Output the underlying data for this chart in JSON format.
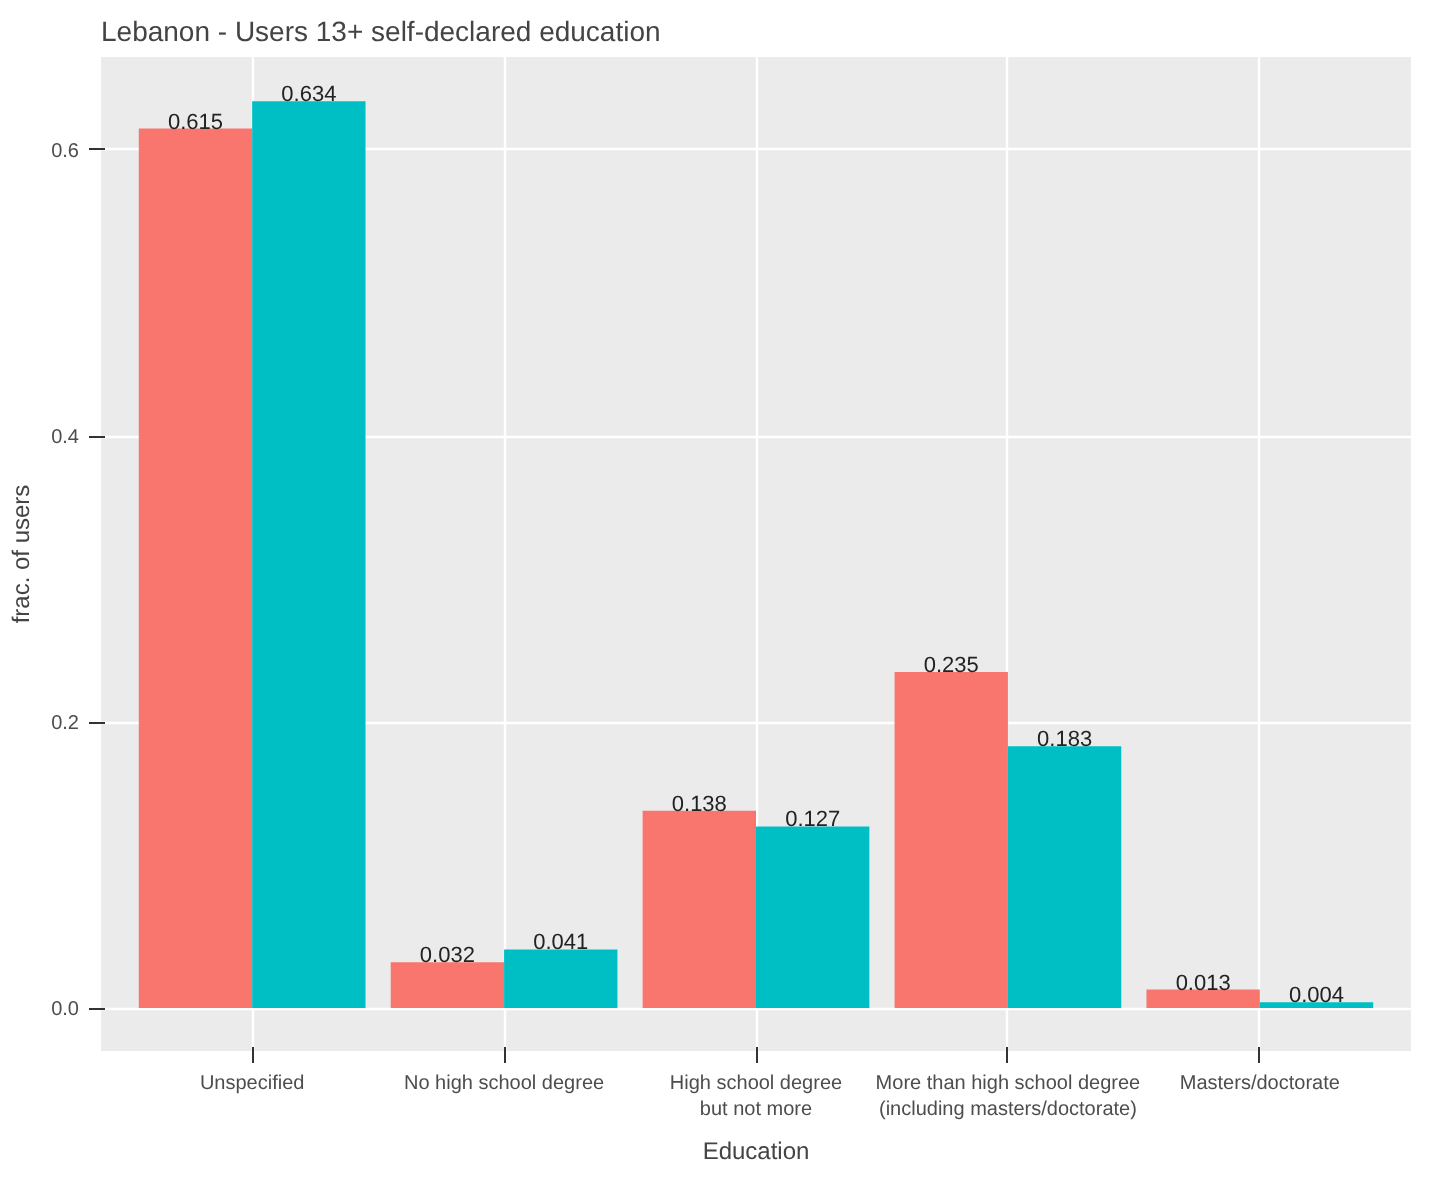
{
  "chart_data": {
    "type": "bar",
    "title": "Lebanon - Users 13+ self-declared education",
    "xlabel": "Education",
    "ylabel": "frac. of users",
    "categories": [
      "Unspecified",
      "No high school degree",
      "High school degree\nbut not more",
      "More than high school degree\n(including masters/doctorate)",
      "Masters/doctorate"
    ],
    "series": [
      {
        "color": "#f8766d",
        "values": [
          0.615,
          0.032,
          0.138,
          0.235,
          0.013
        ]
      },
      {
        "color": "#00bfc4",
        "values": [
          0.634,
          0.041,
          0.127,
          0.183,
          0.004
        ]
      }
    ],
    "ylim": [
      -0.03,
      0.665
    ],
    "yticks": [
      {
        "value": 0,
        "label": "0.0"
      },
      {
        "value": 0.2,
        "label": "0.2"
      },
      {
        "value": 0.4,
        "label": "0.4"
      },
      {
        "value": 0.6,
        "label": "0.6"
      }
    ],
    "grid": true,
    "data_labels": true
  }
}
